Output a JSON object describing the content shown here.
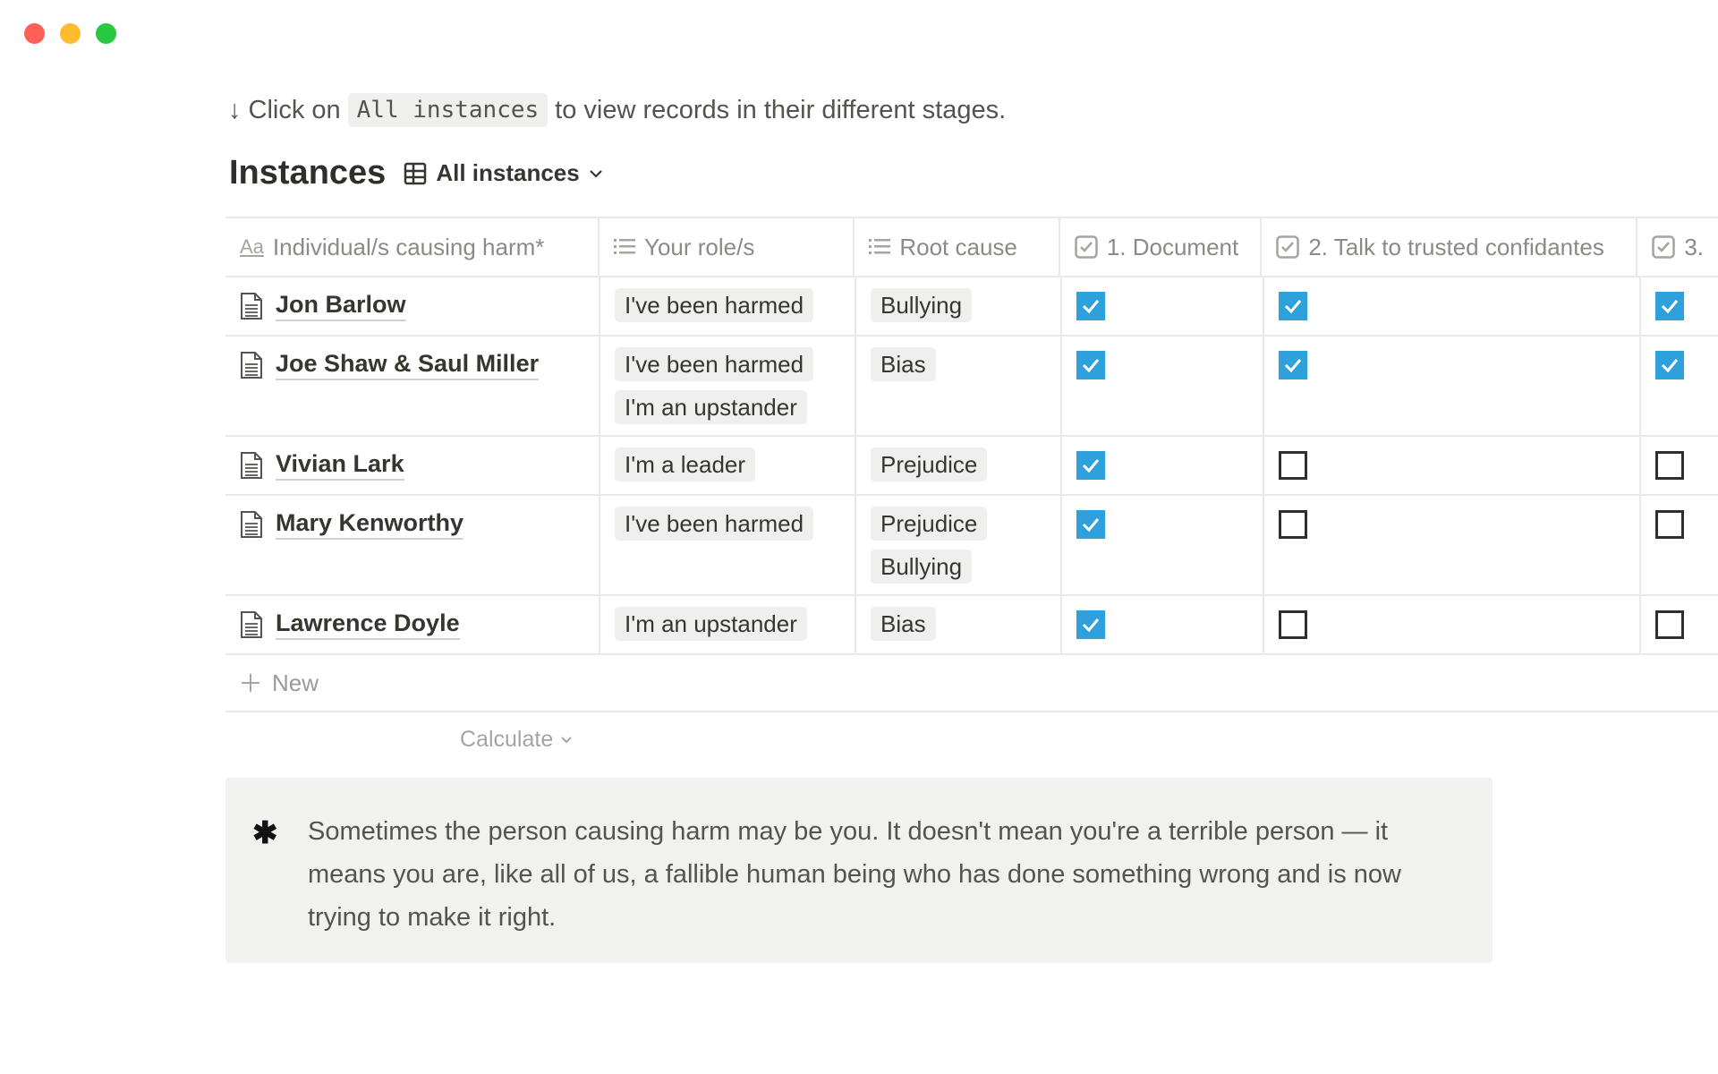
{
  "window": {
    "controls": [
      "close",
      "minimize",
      "maximize"
    ],
    "colors": {
      "close": "#fe5f57",
      "minimize": "#febc2e",
      "maximize": "#28c840"
    }
  },
  "intro": {
    "arrow": "↓",
    "before": "Click on",
    "code": "All instances",
    "after": "to view records in their different stages."
  },
  "database": {
    "title": "Instances",
    "view_label": "All instances",
    "view_icon": "table-icon"
  },
  "columns": [
    {
      "label": "Individual/s causing harm*",
      "icon": "Aa"
    },
    {
      "label": "Your role/s",
      "icon": "list-icon"
    },
    {
      "label": "Root cause",
      "icon": "list-icon"
    },
    {
      "label": "1. Document",
      "icon": "checkbox-icon"
    },
    {
      "label": "2. Talk to trusted confidantes",
      "icon": "checkbox-icon"
    },
    {
      "label": "3.",
      "icon": "checkbox-icon"
    }
  ],
  "rows": [
    {
      "name": "Jon Barlow",
      "roles": [
        "I've been harmed"
      ],
      "causes": [
        "Bullying"
      ],
      "checks": [
        true,
        true,
        true
      ]
    },
    {
      "name": "Joe Shaw & Saul Miller",
      "roles": [
        "I've been harmed",
        "I'm an upstander"
      ],
      "causes": [
        "Bias"
      ],
      "checks": [
        true,
        true,
        true
      ]
    },
    {
      "name": "Vivian Lark",
      "roles": [
        "I'm a leader"
      ],
      "causes": [
        "Prejudice"
      ],
      "checks": [
        true,
        false,
        false
      ]
    },
    {
      "name": "Mary Kenworthy",
      "roles": [
        "I've been harmed"
      ],
      "causes": [
        "Prejudice",
        "Bullying"
      ],
      "checks": [
        true,
        false,
        false
      ]
    },
    {
      "name": "Lawrence Doyle",
      "roles": [
        "I'm an upstander"
      ],
      "causes": [
        "Bias"
      ],
      "checks": [
        true,
        false,
        false
      ]
    }
  ],
  "new_label": "New",
  "calculate_label": "Calculate",
  "callout": {
    "icon": "✱",
    "text": "Sometimes the person causing harm may be you. It doesn't mean you're a terrible person — it means you are, like all of us, a fallible human being who has done something wrong and is now trying to make it right."
  },
  "accent": "#2ea0dc"
}
